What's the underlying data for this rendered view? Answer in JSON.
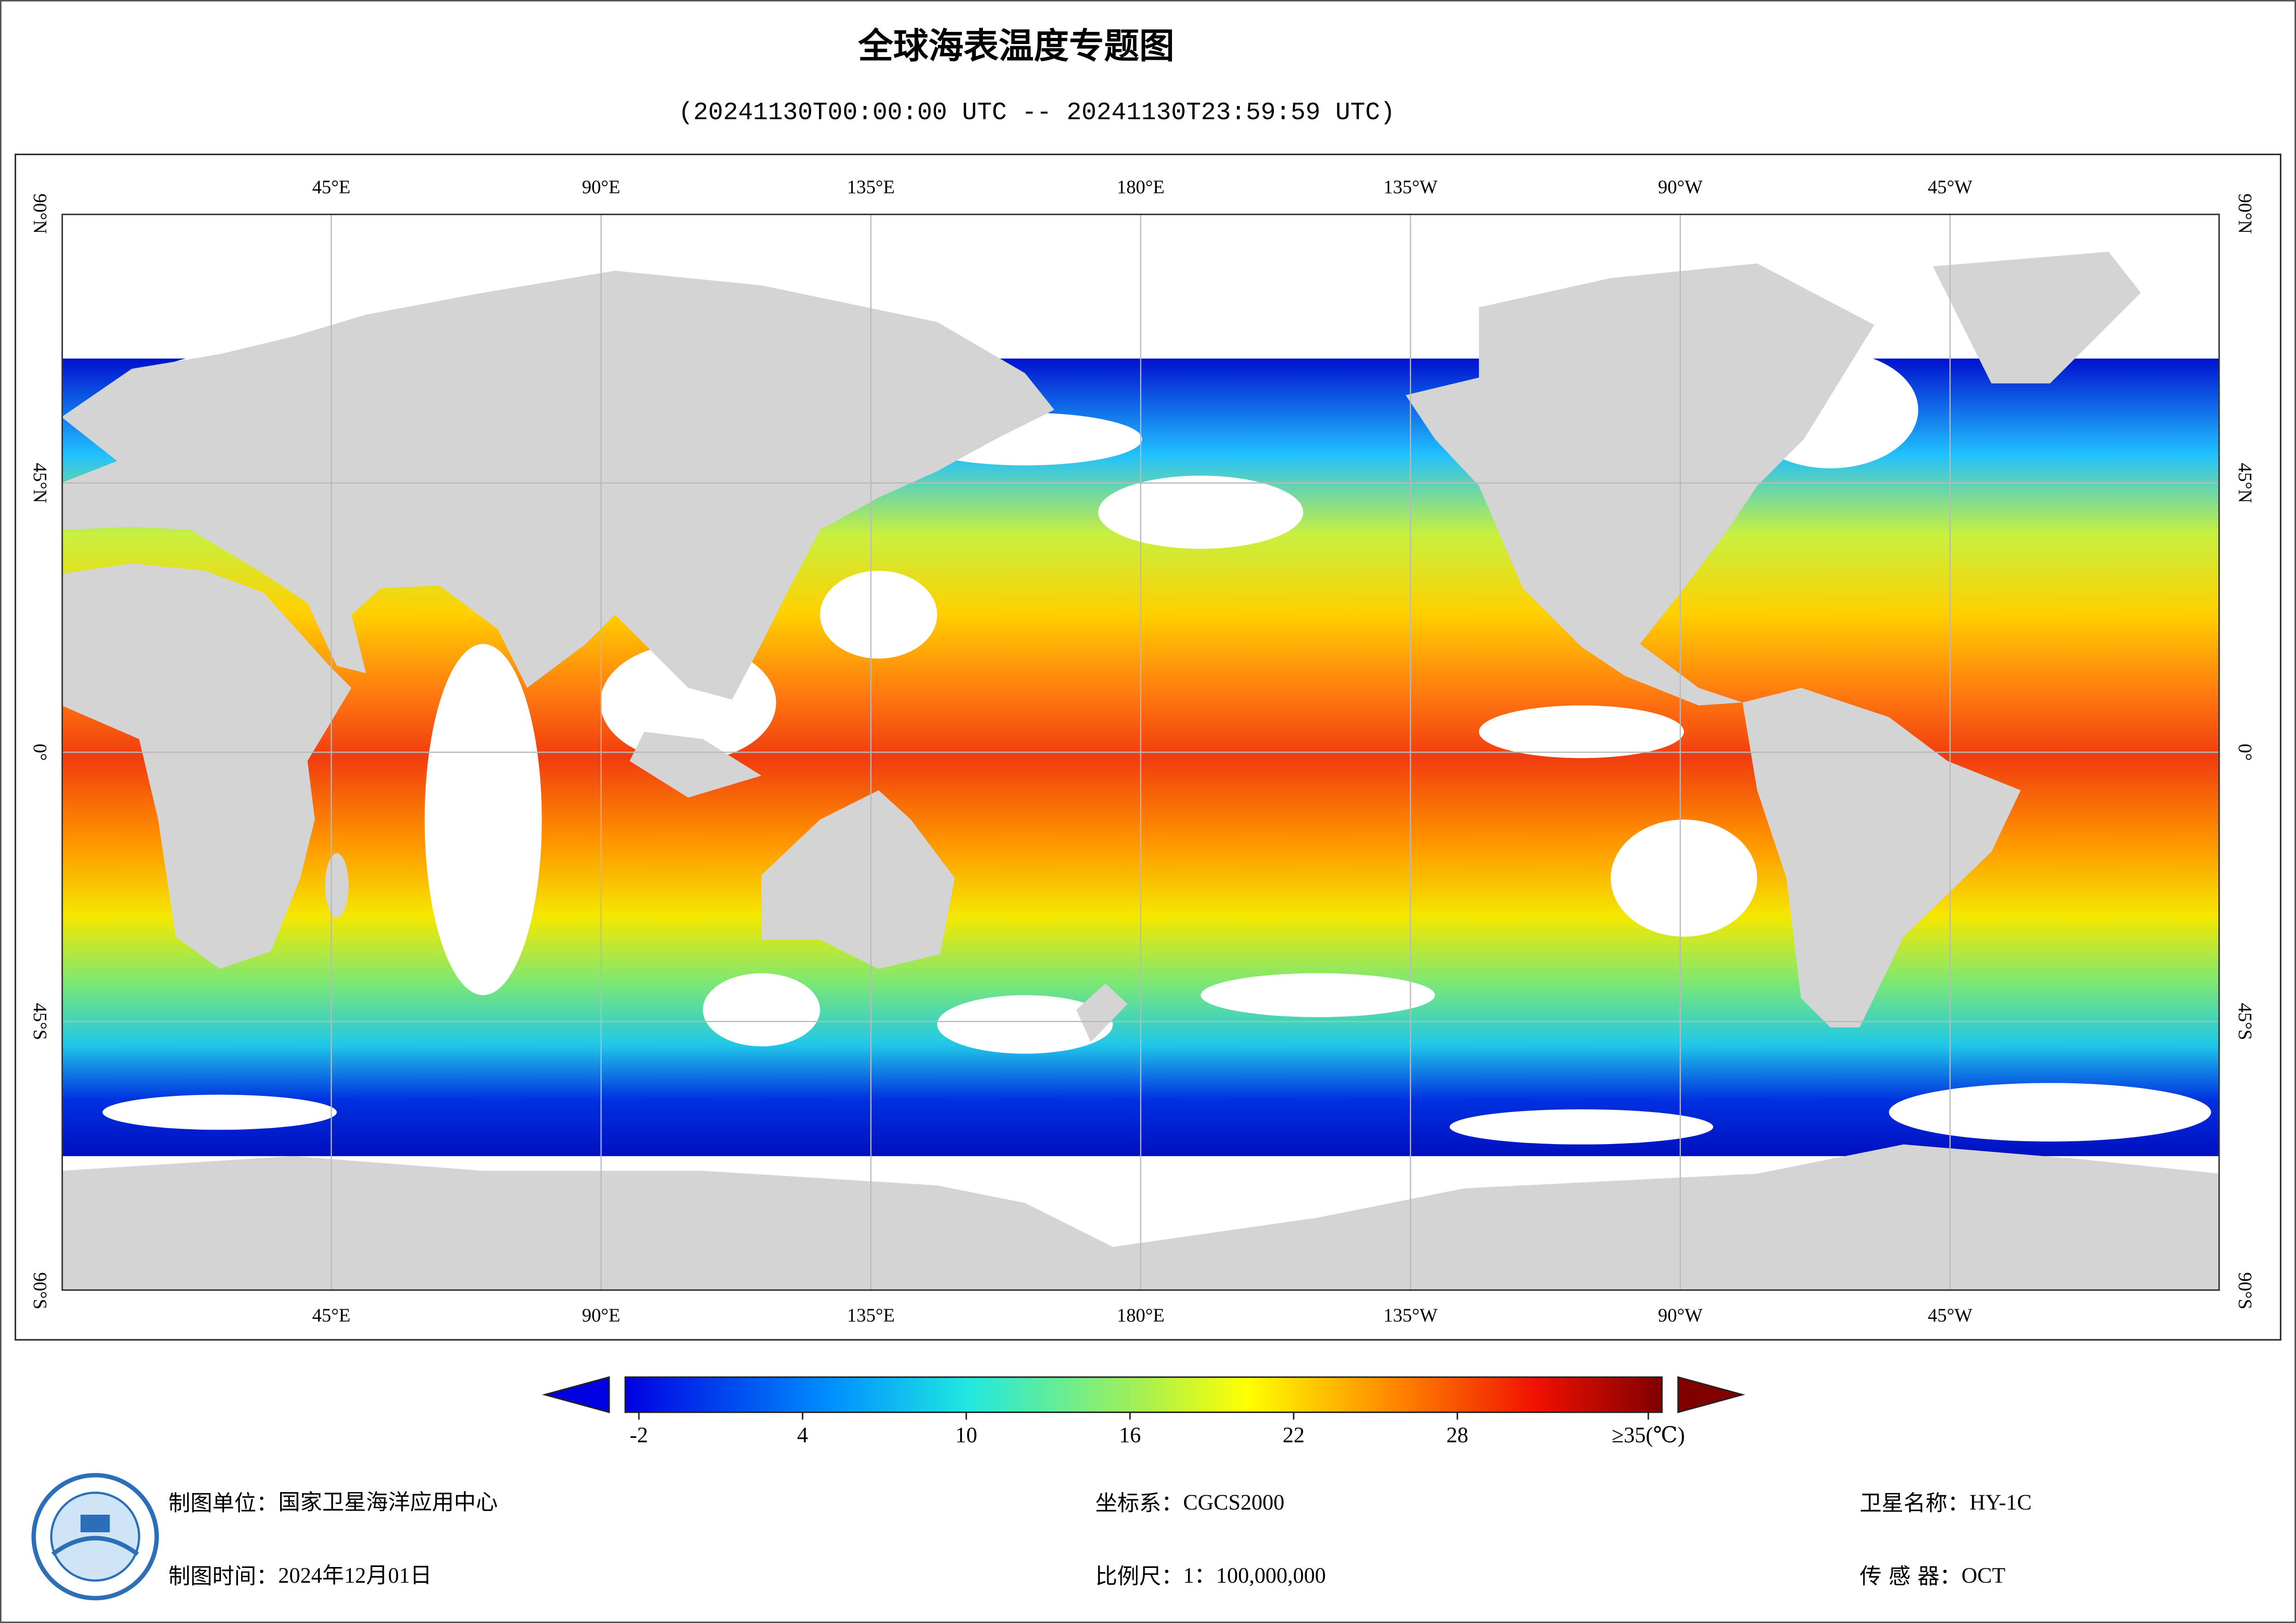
{
  "title": "全球海表温度专题图",
  "subtitle": "(20241130T00:00:00 UTC -- 20241130T23:59:59 UTC)",
  "map": {
    "lon_labels": [
      "45°E",
      "90°E",
      "135°E",
      "180°E",
      "135°W",
      "90°W",
      "45°W"
    ],
    "lat_labels": [
      "90°N",
      "45°N",
      "0°",
      "45°S",
      "90°S"
    ]
  },
  "colorbar": {
    "range": [
      -2.5,
      35.5
    ],
    "ticks": [
      -2,
      4,
      10,
      16,
      22,
      28,
      {
        "value": 35,
        "label": "≥35(℃)"
      }
    ]
  },
  "footer": [
    {
      "label": "制图单位：",
      "value": "国家卫星海洋应用中心"
    },
    {
      "label": "制图时间：",
      "value": "2024年12月01日"
    },
    {
      "label": "坐标系：",
      "value": "CGCS2000"
    },
    {
      "label": "比例尺：",
      "value": "1：100,000,000"
    },
    {
      "label": "卫星名称：",
      "value": "HY-1C"
    },
    {
      "label": "传 感 器：",
      "value": "OCT"
    }
  ]
}
